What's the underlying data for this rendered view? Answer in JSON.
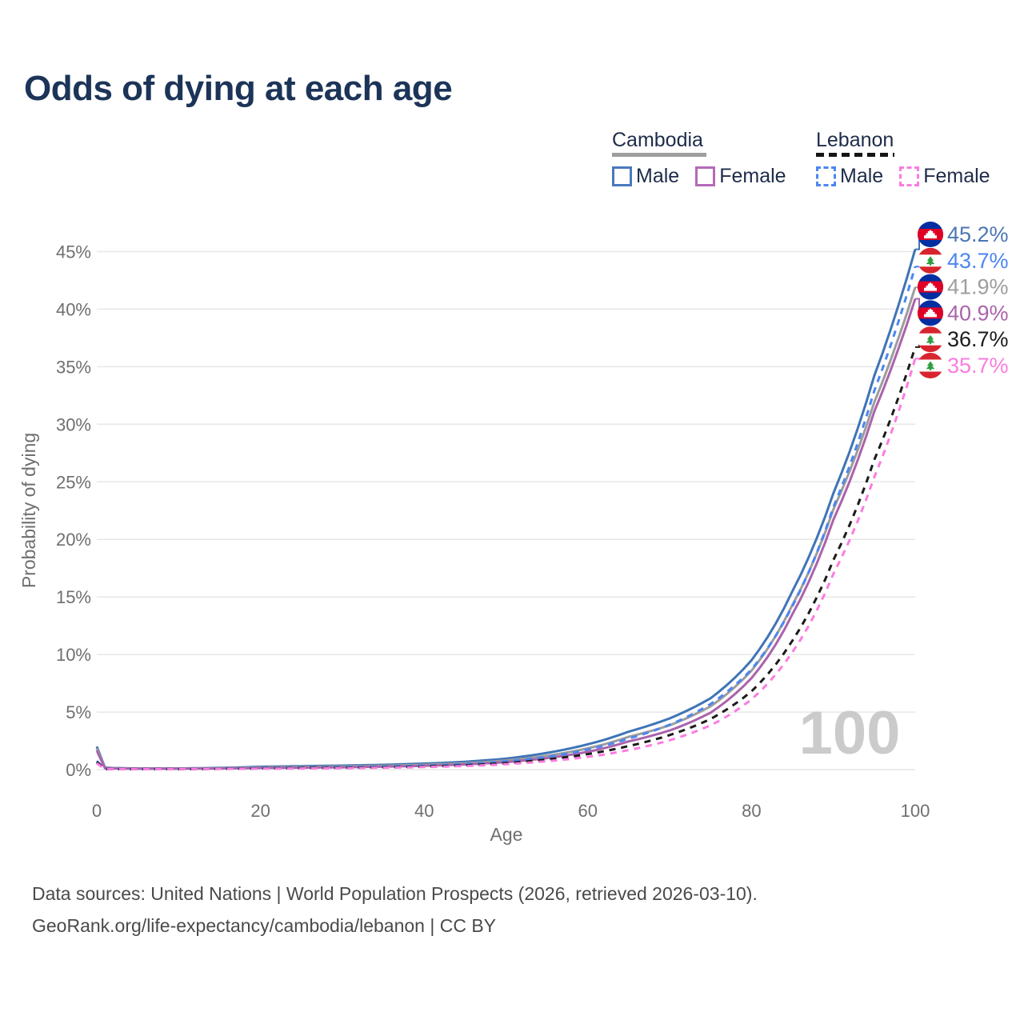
{
  "title": "Odds of dying at each age",
  "legend": {
    "groups": [
      {
        "id": "cambodia",
        "label": "Cambodia",
        "line_style": "solid",
        "line_color": "#9e9e9e",
        "items": [
          {
            "label": "Male",
            "color": "#4a79bd",
            "style": "solid"
          },
          {
            "label": "Female",
            "color": "#b46ab8",
            "style": "solid"
          }
        ]
      },
      {
        "id": "lebanon",
        "label": "Lebanon",
        "line_style": "dashed",
        "line_color": "#151515",
        "items": [
          {
            "label": "Male",
            "color": "#4c86f0",
            "style": "dashed"
          },
          {
            "label": "Female",
            "color": "#fb7ce0",
            "style": "dashed"
          }
        ]
      }
    ]
  },
  "chart_data": {
    "type": "line",
    "title": "Odds of dying at each age",
    "xlabel": "Age",
    "ylabel": "Probability of dying",
    "xlim": [
      0,
      100
    ],
    "ylim": [
      0,
      46.5
    ],
    "grid": "horizontal-only",
    "legend_position": "top-right",
    "watermark": "100",
    "x_ticks": [
      {
        "v": 0,
        "label": "0"
      },
      {
        "v": 20,
        "label": "20"
      },
      {
        "v": 40,
        "label": "40"
      },
      {
        "v": 60,
        "label": "60"
      },
      {
        "v": 80,
        "label": "80"
      },
      {
        "v": 100,
        "label": "100"
      }
    ],
    "y_ticks": [
      {
        "v": 0,
        "label": "0%"
      },
      {
        "v": 5,
        "label": "5%"
      },
      {
        "v": 10,
        "label": "10%"
      },
      {
        "v": 15,
        "label": "15%"
      },
      {
        "v": 20,
        "label": "20%"
      },
      {
        "v": 25,
        "label": "25%"
      },
      {
        "v": 30,
        "label": "30%"
      },
      {
        "v": 35,
        "label": "35%"
      },
      {
        "v": 40,
        "label": "40%"
      },
      {
        "v": 45,
        "label": "45%"
      }
    ],
    "ages": [
      0,
      1,
      2,
      5,
      10,
      15,
      20,
      25,
      30,
      35,
      40,
      45,
      50,
      55,
      60,
      65,
      70,
      75,
      80,
      85,
      90,
      95,
      100
    ],
    "series": [
      {
        "id": "cambodia-male",
        "country": "Cambodia",
        "sex": "Male",
        "color": "#3f74b6",
        "dash": false,
        "flag": "cambodia",
        "end_label": "45.2%",
        "label_color": "#4b77b2",
        "values": [
          2.0,
          0.18,
          0.14,
          0.1,
          0.1,
          0.15,
          0.25,
          0.3,
          0.35,
          0.42,
          0.52,
          0.68,
          0.95,
          1.45,
          2.2,
          3.3,
          4.45,
          6.2,
          9.5,
          15.5,
          24.0,
          34.2,
          45.2
        ]
      },
      {
        "id": "lebanon-male",
        "country": "Lebanon",
        "sex": "Male",
        "color": "#4c86f0",
        "dash": true,
        "flag": "lebanon",
        "end_label": "43.7%",
        "label_color": "#4c86f0",
        "values": [
          0.75,
          0.06,
          0.05,
          0.04,
          0.05,
          0.09,
          0.15,
          0.18,
          0.21,
          0.26,
          0.34,
          0.48,
          0.72,
          1.1,
          1.75,
          2.7,
          3.9,
          5.7,
          8.7,
          14.2,
          22.8,
          32.9,
          43.7
        ]
      },
      {
        "id": "cambodia-both",
        "country": "Cambodia",
        "sex": "Both",
        "color": "#9c9c9c",
        "dash": false,
        "flag": "cambodia",
        "end_label": "41.9%",
        "label_color": "#9e9e9e",
        "values": [
          1.85,
          0.15,
          0.12,
          0.09,
          0.09,
          0.12,
          0.19,
          0.23,
          0.27,
          0.33,
          0.42,
          0.55,
          0.79,
          1.2,
          1.85,
          2.85,
          3.85,
          5.5,
          8.6,
          14.3,
          22.6,
          31.9,
          41.9
        ]
      },
      {
        "id": "cambodia-female",
        "country": "Cambodia",
        "sex": "Female",
        "color": "#ab63ab",
        "dash": false,
        "flag": "cambodia",
        "end_label": "40.9%",
        "label_color": "#ab63ab",
        "values": [
          1.65,
          0.12,
          0.1,
          0.08,
          0.08,
          0.1,
          0.14,
          0.17,
          0.2,
          0.26,
          0.33,
          0.45,
          0.65,
          1.0,
          1.55,
          2.45,
          3.4,
          4.95,
          7.95,
          13.5,
          21.7,
          31.1,
          40.9
        ]
      },
      {
        "id": "lebanon-both",
        "country": "Lebanon",
        "sex": "Both",
        "color": "#1b1b1b",
        "dash": true,
        "flag": "lebanon",
        "end_label": "36.7%",
        "label_color": "#1b1b1b",
        "values": [
          0.65,
          0.05,
          0.04,
          0.04,
          0.04,
          0.07,
          0.11,
          0.14,
          0.16,
          0.2,
          0.27,
          0.38,
          0.57,
          0.88,
          1.35,
          2.05,
          3.0,
          4.4,
          6.8,
          11.2,
          18.2,
          26.9,
          36.7
        ]
      },
      {
        "id": "lebanon-female",
        "country": "Lebanon",
        "sex": "Female",
        "color": "#fb7ce0",
        "dash": true,
        "flag": "lebanon",
        "end_label": "35.7%",
        "label_color": "#fb7ce0",
        "values": [
          0.55,
          0.05,
          0.04,
          0.03,
          0.04,
          0.06,
          0.08,
          0.1,
          0.12,
          0.16,
          0.22,
          0.31,
          0.47,
          0.73,
          1.1,
          1.7,
          2.55,
          3.85,
          6.1,
          10.2,
          17.0,
          25.4,
          35.7
        ]
      }
    ]
  },
  "footer": {
    "line1": "Data sources: United Nations | World Population Prospects (2026, retrieved 2026-03-10).",
    "line2": "GeoRank.org/life-expectancy/cambodia/lebanon | CC BY"
  }
}
